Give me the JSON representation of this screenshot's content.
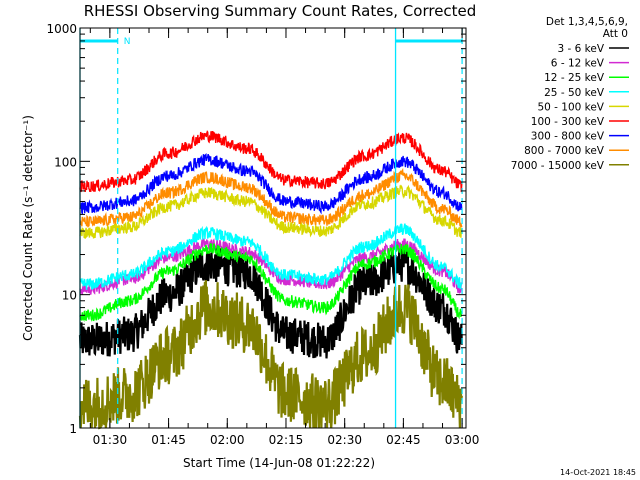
{
  "chart_data": {
    "type": "line",
    "title": "RHESSI Observing Summary Count Rates, Corrected",
    "xlabel": "Start Time (14-Jun-08 01:22:22)",
    "ylabel": "Corrected Count Rate (s⁻¹ detector⁻¹)",
    "yscale": "log",
    "ylim": [
      1,
      1000
    ],
    "xlim": [
      "01:22:22",
      "03:01:00"
    ],
    "xticks": [
      "01:30",
      "01:45",
      "02:00",
      "02:15",
      "02:30",
      "02:45",
      "03:00"
    ],
    "yticks": [
      "1",
      "10",
      "100",
      "1000"
    ],
    "grid": false,
    "legend_position": "right",
    "legend_header": [
      "Det 1,3,4,5,6,9,",
      "Att 0"
    ],
    "annotations": {
      "night_label": "N",
      "night_intervals": [
        [
          "01:22:22",
          "01:32:00"
        ],
        [
          "02:43:00",
          "03:00:00"
        ]
      ],
      "markers_cyan": [
        "01:22:22",
        "02:43:00"
      ],
      "markers_dashed": [
        "01:32:00",
        "03:00:00"
      ]
    },
    "x": [
      "01:25",
      "01:35",
      "01:45",
      "01:55",
      "02:05",
      "02:15",
      "02:25",
      "02:35",
      "02:45",
      "02:55",
      "03:00"
    ],
    "series": [
      {
        "name": "3 - 6 keV",
        "color": "#000000",
        "values": [
          4.5,
          5,
          10,
          17,
          15,
          5,
          4.5,
          12,
          17,
          8,
          4.5
        ]
      },
      {
        "name": "6 - 12 keV",
        "color": "#d22ad2",
        "values": [
          11,
          13,
          19,
          24,
          21,
          13,
          12,
          19,
          24,
          15,
          11
        ]
      },
      {
        "name": "12 - 25 keV",
        "color": "#00ff00",
        "values": [
          7,
          9,
          15,
          22,
          19,
          9,
          8,
          17,
          22,
          11,
          7
        ]
      },
      {
        "name": "25 - 50 keV",
        "color": "#00ffff",
        "values": [
          12,
          14,
          21,
          29,
          25,
          14,
          13,
          23,
          31,
          16,
          12
        ]
      },
      {
        "name": "50 - 100 keV",
        "color": "#d7d700",
        "values": [
          29,
          32,
          46,
          58,
          50,
          32,
          30,
          48,
          60,
          36,
          29
        ]
      },
      {
        "name": "100 - 300 keV",
        "color": "#ff0000",
        "values": [
          65,
          72,
          115,
          155,
          125,
          72,
          68,
          110,
          150,
          85,
          65
        ]
      },
      {
        "name": "300 - 800 keV",
        "color": "#0000ff",
        "values": [
          45,
          50,
          78,
          103,
          85,
          50,
          46,
          75,
          100,
          58,
          45
        ]
      },
      {
        "name": "800 - 7000 keV",
        "color": "#ff8c00",
        "values": [
          35,
          38,
          58,
          76,
          64,
          38,
          36,
          56,
          78,
          44,
          35
        ]
      },
      {
        "name": "7000 - 15000 keV",
        "color": "#808000",
        "values": [
          1.5,
          1.8,
          3.5,
          8,
          6,
          1.8,
          1.5,
          3.5,
          8,
          2.2,
          1.5
        ]
      }
    ]
  },
  "footer": {
    "timestamp": "14-Oct-2021 18:45"
  }
}
